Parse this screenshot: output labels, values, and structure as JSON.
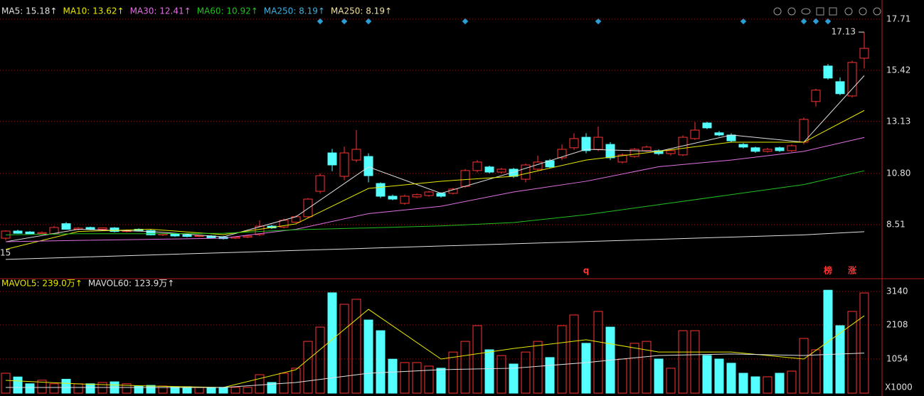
{
  "chart_data": [
    {
      "type": "candlestick",
      "up_color": "#ff3232",
      "down_color": "#54ffff",
      "open": [
        7.9,
        8.22,
        8.18,
        8.1,
        8.1,
        8.55,
        8.3,
        8.38,
        8.3,
        8.36,
        8.2,
        8.3,
        8.24,
        8.05,
        8.1,
        8.05,
        7.98,
        8.0,
        7.95,
        7.9,
        7.95,
        8.06,
        8.44,
        8.4,
        8.62,
        8.86,
        10.0,
        11.72,
        10.67,
        11.4,
        11.56,
        10.35,
        9.78,
        9.46,
        9.75,
        9.81,
        9.91,
        9.91,
        10.22,
        10.93,
        11.09,
        10.86,
        10.99,
        10.54,
        10.99,
        11.37,
        11.5,
        11.95,
        12.42,
        11.88,
        12.1,
        11.31,
        11.56,
        11.82,
        11.82,
        11.69,
        11.63,
        12.36,
        13.06,
        12.62,
        12.52,
        12.1,
        11.95,
        11.79,
        11.95,
        11.82,
        12.2,
        14.02,
        15.61,
        14.91,
        14.27,
        15.96
      ],
      "high": [
        8.25,
        8.28,
        8.22,
        8.2,
        8.45,
        8.62,
        8.4,
        8.42,
        8.38,
        8.4,
        8.3,
        8.34,
        8.28,
        8.12,
        8.14,
        8.1,
        8.05,
        8.04,
        8.0,
        7.98,
        8.04,
        8.7,
        8.5,
        8.78,
        8.92,
        9.7,
        10.8,
        11.9,
        12.0,
        12.74,
        11.7,
        10.4,
        9.85,
        9.85,
        9.9,
        10.02,
        9.96,
        10.15,
        11.0,
        11.4,
        11.15,
        11.05,
        11.05,
        11.25,
        11.6,
        11.45,
        12.1,
        12.6,
        12.6,
        12.9,
        12.2,
        11.7,
        11.95,
        12.05,
        11.88,
        11.88,
        12.5,
        13.1,
        13.12,
        12.7,
        12.6,
        12.16,
        12.0,
        11.95,
        12.0,
        12.1,
        13.3,
        14.6,
        15.7,
        15.1,
        15.85,
        17.13
      ],
      "low": [
        7.8,
        8.1,
        8.08,
        8.06,
        8.06,
        8.28,
        8.26,
        8.26,
        8.26,
        8.16,
        8.16,
        8.2,
        8.02,
        8.0,
        7.96,
        7.94,
        7.94,
        7.88,
        7.84,
        7.86,
        7.9,
        8.0,
        8.32,
        8.34,
        8.58,
        8.8,
        9.9,
        10.9,
        10.5,
        11.3,
        10.4,
        9.7,
        9.6,
        9.4,
        9.7,
        9.76,
        9.72,
        9.86,
        10.15,
        10.85,
        10.8,
        10.8,
        10.6,
        10.4,
        10.9,
        11.02,
        11.4,
        11.85,
        11.7,
        11.8,
        11.4,
        11.25,
        11.5,
        11.76,
        11.62,
        11.6,
        11.58,
        12.3,
        12.78,
        12.46,
        12.2,
        11.92,
        11.72,
        11.74,
        11.76,
        11.76,
        12.1,
        13.8,
        15.0,
        14.3,
        14.2,
        15.5
      ],
      "close": [
        8.22,
        8.12,
        8.1,
        8.15,
        8.38,
        8.3,
        8.35,
        8.3,
        8.36,
        8.2,
        8.25,
        8.24,
        8.05,
        8.1,
        8.0,
        7.98,
        8.02,
        7.92,
        7.88,
        7.95,
        8.0,
        8.44,
        8.36,
        8.7,
        8.86,
        9.65,
        10.7,
        11.18,
        11.72,
        11.88,
        10.7,
        9.78,
        9.65,
        9.78,
        9.85,
        9.97,
        9.78,
        10.1,
        10.93,
        11.31,
        10.86,
        10.99,
        10.67,
        11.18,
        11.31,
        11.09,
        11.88,
        12.36,
        11.82,
        12.42,
        11.5,
        11.63,
        11.88,
        11.98,
        11.69,
        11.82,
        12.42,
        12.74,
        12.84,
        12.52,
        12.26,
        11.98,
        11.79,
        11.88,
        11.82,
        12.04,
        13.22,
        14.53,
        15.07,
        14.37,
        15.77,
        16.4
      ],
      "lines": [
        {
          "color": "#e0e0e0",
          "x": [
            0,
            6,
            12,
            18,
            24,
            30,
            36,
            42,
            48,
            54,
            60,
            66,
            71
          ],
          "values": [
            7.74,
            8.3,
            8.2,
            7.96,
            8.86,
            11.09,
            9.91,
            10.86,
            11.88,
            11.79,
            12.52,
            12.2,
            15.18
          ]
        },
        {
          "color": "#e8e800",
          "x": [
            0,
            6,
            12,
            18,
            24,
            30,
            36,
            42,
            48,
            54,
            60,
            66,
            71
          ],
          "values": [
            7.4,
            8.2,
            8.3,
            8.06,
            8.54,
            10.13,
            10.45,
            10.67,
            11.4,
            11.79,
            12.2,
            12.2,
            13.62
          ]
        },
        {
          "color": "#e070e0",
          "x": [
            0,
            6,
            12,
            18,
            24,
            30,
            36,
            42,
            48,
            54,
            60,
            66,
            71
          ],
          "values": [
            7.74,
            7.8,
            7.85,
            7.9,
            8.3,
            9.0,
            9.33,
            9.97,
            10.45,
            11.1,
            11.4,
            11.79,
            12.41
          ]
        },
        {
          "color": "#20c020",
          "x": [
            0,
            6,
            12,
            18,
            24,
            30,
            36,
            42,
            48,
            54,
            60,
            66,
            71
          ],
          "values": [
            8.05,
            8.1,
            8.1,
            8.12,
            8.28,
            8.36,
            8.45,
            8.6,
            8.95,
            9.4,
            9.85,
            10.3,
            10.92
          ]
        },
        {
          "color": "#e0e0e0",
          "x": [
            0,
            6,
            12,
            18,
            24,
            30,
            36,
            42,
            48,
            54,
            60,
            66,
            71
          ],
          "values": [
            6.95,
            7.05,
            7.15,
            7.25,
            7.35,
            7.45,
            7.55,
            7.65,
            7.75,
            7.85,
            7.95,
            8.05,
            8.19
          ]
        }
      ],
      "legend": [
        {
          "label": "MA5: 15.18↑",
          "color": "#e0e0e0"
        },
        {
          "label": "MA10: 13.62↑",
          "color": "#e8e800"
        },
        {
          "label": "MA30: 12.41↑",
          "color": "#e070e0"
        },
        {
          "label": "MA60: 10.92↑",
          "color": "#20c020"
        },
        {
          "label": "MA250: 8.19↑",
          "color": "#40b0e0"
        },
        {
          "label": "MA250: 8.19↑",
          "color": "#f0e0a0"
        }
      ],
      "annotations": [
        {
          "text": "q",
          "x": 48
        },
        {
          "text": "榜",
          "x": 68
        },
        {
          "text": "涨",
          "x": 70
        }
      ],
      "left_label": "15",
      "ylim": [
        6.15,
        17.93
      ],
      "yticks": [
        17.71,
        15.42,
        13.13,
        {
          "value": 10.8,
          "label": "10.80"
        },
        8.51
      ],
      "grid": true
    },
    {
      "type": "bar",
      "values": [
        615,
        500,
        290,
        400,
        290,
        430,
        290,
        290,
        330,
        350,
        290,
        220,
        240,
        220,
        200,
        200,
        180,
        180,
        180,
        180,
        180,
        570,
        330,
        615,
        770,
        1600,
        2040,
        3100,
        2745,
        2900,
        2260,
        1930,
        1050,
        945,
        945,
        835,
        770,
        1270,
        1600,
        2085,
        1340,
        1160,
        900,
        1270,
        1600,
        1100,
        2085,
        2415,
        1540,
        2525,
        2040,
        1054,
        1540,
        1600,
        1054,
        770,
        1930,
        1930,
        1165,
        1054,
        925,
        615,
        505,
        505,
        615,
        680,
        1690,
        1340,
        3180,
        2085,
        2525,
        3095
      ],
      "lines": [
        {
          "color": "#e8e800",
          "x": [
            0,
            6,
            12,
            18,
            24,
            30,
            36,
            42,
            48,
            54,
            60,
            66,
            71
          ],
          "values": [
            395,
            285,
            220,
            175,
            725,
            2590,
            1054,
            1380,
            1650,
            1270,
            1270,
            1054,
            2390
          ]
        },
        {
          "color": "#e0e0e0",
          "x": [
            0,
            6,
            12,
            18,
            24,
            30,
            36,
            42,
            48,
            54,
            60,
            66,
            71
          ],
          "values": [
            175,
            175,
            175,
            175,
            330,
            615,
            725,
            770,
            945,
            1165,
            1210,
            1165,
            1239
          ]
        }
      ],
      "legend": [
        {
          "label": "MAVOL5: 239.0万↑",
          "color": "#e8e800"
        },
        {
          "label": "MAVOL60: 123.9万↑",
          "color": "#e0e0e0"
        }
      ],
      "unit_label": "X1000",
      "ylim": [
        0,
        3360
      ],
      "yticks": [
        3140,
        2108,
        1054
      ],
      "grid": true
    }
  ]
}
